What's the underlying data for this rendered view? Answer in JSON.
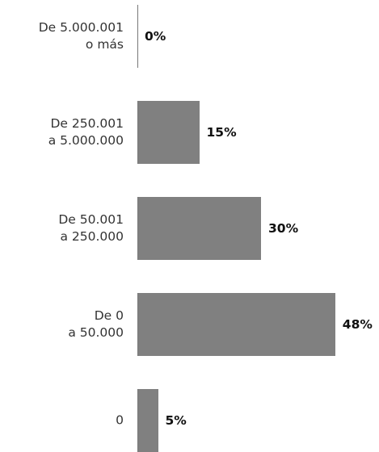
{
  "chart_data": {
    "type": "bar",
    "orientation": "horizontal",
    "categories": [
      "De 5.000.001\no más",
      "De 250.001\na 5.000.000",
      "De 50.001\na 250.000",
      "De 0\na 50.000",
      "0"
    ],
    "values": [
      0,
      15,
      30,
      48,
      5
    ],
    "value_labels": [
      "0%",
      "15%",
      "30%",
      "48%",
      "5%"
    ],
    "color": "#808080"
  }
}
